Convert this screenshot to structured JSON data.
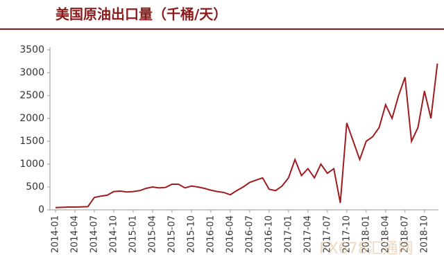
{
  "chart_data": {
    "type": "line",
    "title": "美国原油出口量（千桶/天）",
    "categories": [
      "2014-01",
      null,
      null,
      "2014-04",
      null,
      null,
      "2014-07",
      null,
      null,
      "2014-10",
      null,
      null,
      "2015-01",
      null,
      null,
      "2015-04",
      null,
      null,
      "2015-07",
      null,
      null,
      "2015-10",
      null,
      null,
      "2016-01",
      null,
      null,
      "2016-04",
      null,
      null,
      "2016-07",
      null,
      null,
      "2016-10",
      null,
      null,
      "2017-01",
      null,
      null,
      "2017-04",
      null,
      null,
      "2017-07",
      null,
      null,
      "2017-10",
      null,
      null,
      "2018-01",
      null,
      null,
      "2018-04",
      null,
      null,
      "2018-07",
      null,
      null,
      "2018-10",
      null,
      null
    ],
    "series": [
      {
        "name": "美国原油出口量",
        "color": "#9e1b1e",
        "values": [
          50,
          55,
          60,
          60,
          65,
          70,
          270,
          300,
          320,
          400,
          410,
          390,
          400,
          420,
          470,
          500,
          480,
          490,
          560,
          560,
          480,
          520,
          500,
          470,
          430,
          400,
          380,
          330,
          420,
          500,
          600,
          650,
          700,
          450,
          420,
          520,
          700,
          1100,
          750,
          900,
          700,
          1000,
          800,
          900,
          150,
          1900,
          1500,
          1100,
          1500,
          1600,
          1800,
          2300,
          2000,
          2500,
          2900,
          1500,
          1800,
          2600,
          2000,
          3200
        ]
      }
    ],
    "ylim": [
      0,
      3500
    ],
    "yticks": [
      0,
      500,
      1000,
      1500,
      2000,
      2500,
      3000,
      3500
    ],
    "grid": false,
    "watermark": "FX678汇通网"
  }
}
